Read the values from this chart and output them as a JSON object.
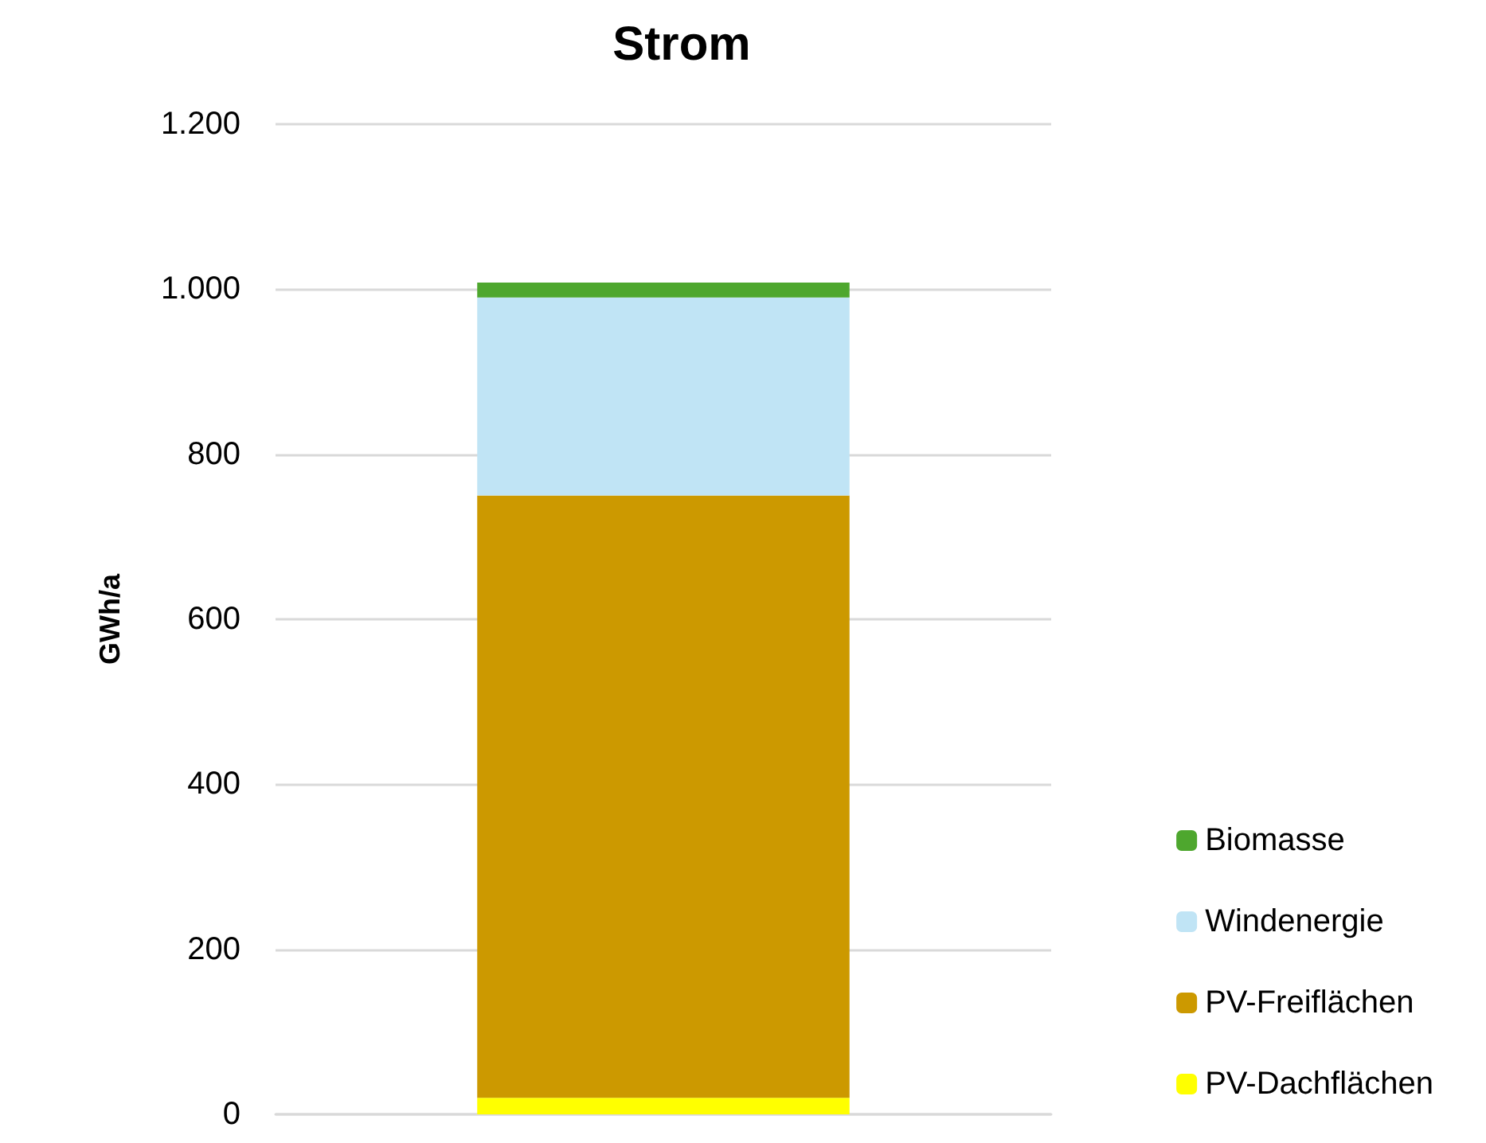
{
  "chart_data": {
    "type": "bar",
    "title": "Strom",
    "ylabel": "GWh/a",
    "categories": [
      null
    ],
    "stacked": true,
    "series": [
      {
        "name": "PV-Dachflächen",
        "color": "#ffff00",
        "values": [
          20
        ]
      },
      {
        "name": "PV-Freiflächen",
        "color": "#cc9900",
        "values": [
          730
        ]
      },
      {
        "name": "Windenergie",
        "color": "#c0e4f5",
        "values": [
          240
        ]
      },
      {
        "name": "Biomasse",
        "color": "#4ea72e",
        "values": [
          18
        ]
      }
    ],
    "ylim": [
      0,
      1200
    ],
    "yticks": [
      0,
      200,
      400,
      600,
      800,
      {
        "value": 1000,
        "label": "1.000"
      },
      {
        "value": 1200,
        "label": "1.200"
      }
    ],
    "grid": "y",
    "legend": "right"
  }
}
